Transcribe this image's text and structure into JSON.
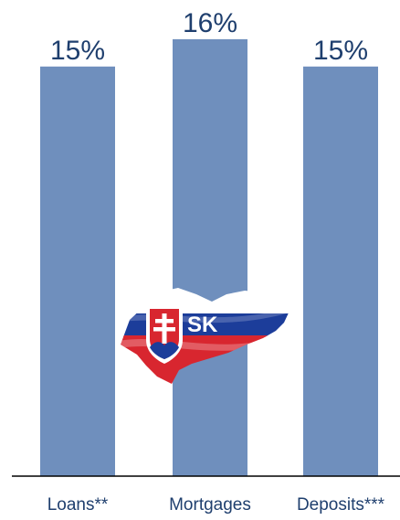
{
  "chart_data": {
    "type": "bar",
    "categories": [
      "Loans**",
      "Mortgages",
      "Deposits***"
    ],
    "values": [
      15,
      16,
      15
    ],
    "value_labels": [
      "15%",
      "16%",
      "15%"
    ],
    "ylim": [
      0,
      17
    ],
    "grid": false,
    "bar_color": "#6f8fbd",
    "label_color": "#1f3f6e"
  },
  "logo": {
    "text": "SK",
    "colors": {
      "white": "#ffffff",
      "blue": "#1c3d9a",
      "red": "#d8262f"
    }
  }
}
